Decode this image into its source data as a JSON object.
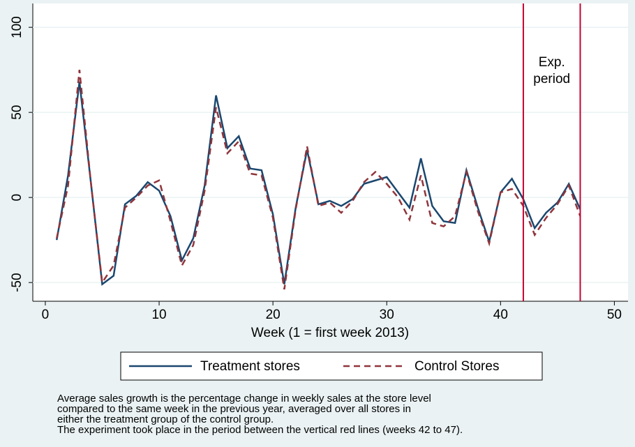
{
  "chart_data": {
    "type": "line",
    "xlabel": "Week (1 = first week 2013)",
    "x": [
      1,
      2,
      3,
      4,
      5,
      6,
      7,
      8,
      9,
      10,
      11,
      12,
      13,
      14,
      15,
      16,
      17,
      18,
      19,
      20,
      21,
      22,
      23,
      24,
      25,
      26,
      27,
      28,
      29,
      30,
      31,
      32,
      33,
      34,
      35,
      36,
      37,
      38,
      39,
      40,
      41,
      42,
      43,
      44,
      45,
      46,
      47
    ],
    "series": [
      {
        "name": "Treatment stores",
        "color": "#1a476f",
        "dash": "none",
        "values": [
          -25,
          13,
          68,
          9,
          -51,
          -46,
          -4,
          1,
          9,
          4,
          -11,
          -37,
          -24,
          7,
          60,
          29,
          36,
          17,
          16,
          -10,
          -51,
          -6,
          28,
          -4,
          -2,
          -5,
          -1,
          8,
          10,
          12,
          3,
          -6,
          23,
          -5,
          -14,
          -15,
          16,
          -6,
          -26,
          3,
          11,
          -1,
          -18,
          -9,
          -3,
          8,
          -7
        ]
      },
      {
        "name": "Control Stores",
        "color": "#90353b",
        "dash": "9 6",
        "values": [
          -24,
          7,
          75,
          9,
          -50,
          -40,
          -6,
          0,
          7,
          10,
          -14,
          -40,
          -28,
          4,
          53,
          26,
          33,
          14,
          13,
          -12,
          -54,
          -7,
          30,
          -5,
          -3,
          -9,
          -2,
          9,
          15,
          8,
          0,
          -13,
          13,
          -15,
          -17,
          -11,
          15,
          -8,
          -27,
          3,
          5,
          -5,
          -22,
          -12,
          -4,
          7,
          -11
        ]
      }
    ],
    "xlim": [
      -1.1,
      51.2
    ],
    "ylim": [
      -61,
      114
    ],
    "xticks": [
      0,
      10,
      20,
      30,
      40,
      50
    ],
    "yticks": [
      -50,
      0,
      50,
      100
    ],
    "grid": true,
    "vlines": [
      42,
      47
    ],
    "vline_color": "#c10534",
    "annotation": [
      "Exp.",
      "period"
    ],
    "notes": [
      "Average sales growth is the percentage change in weekly sales at the store level",
      "compared to the same week in the previous year, averaged over all stores in",
      "either the treatment group of the control group.",
      "The experiment took place in the period between the vertical red lines (weeks 42 to 47)."
    ]
  }
}
